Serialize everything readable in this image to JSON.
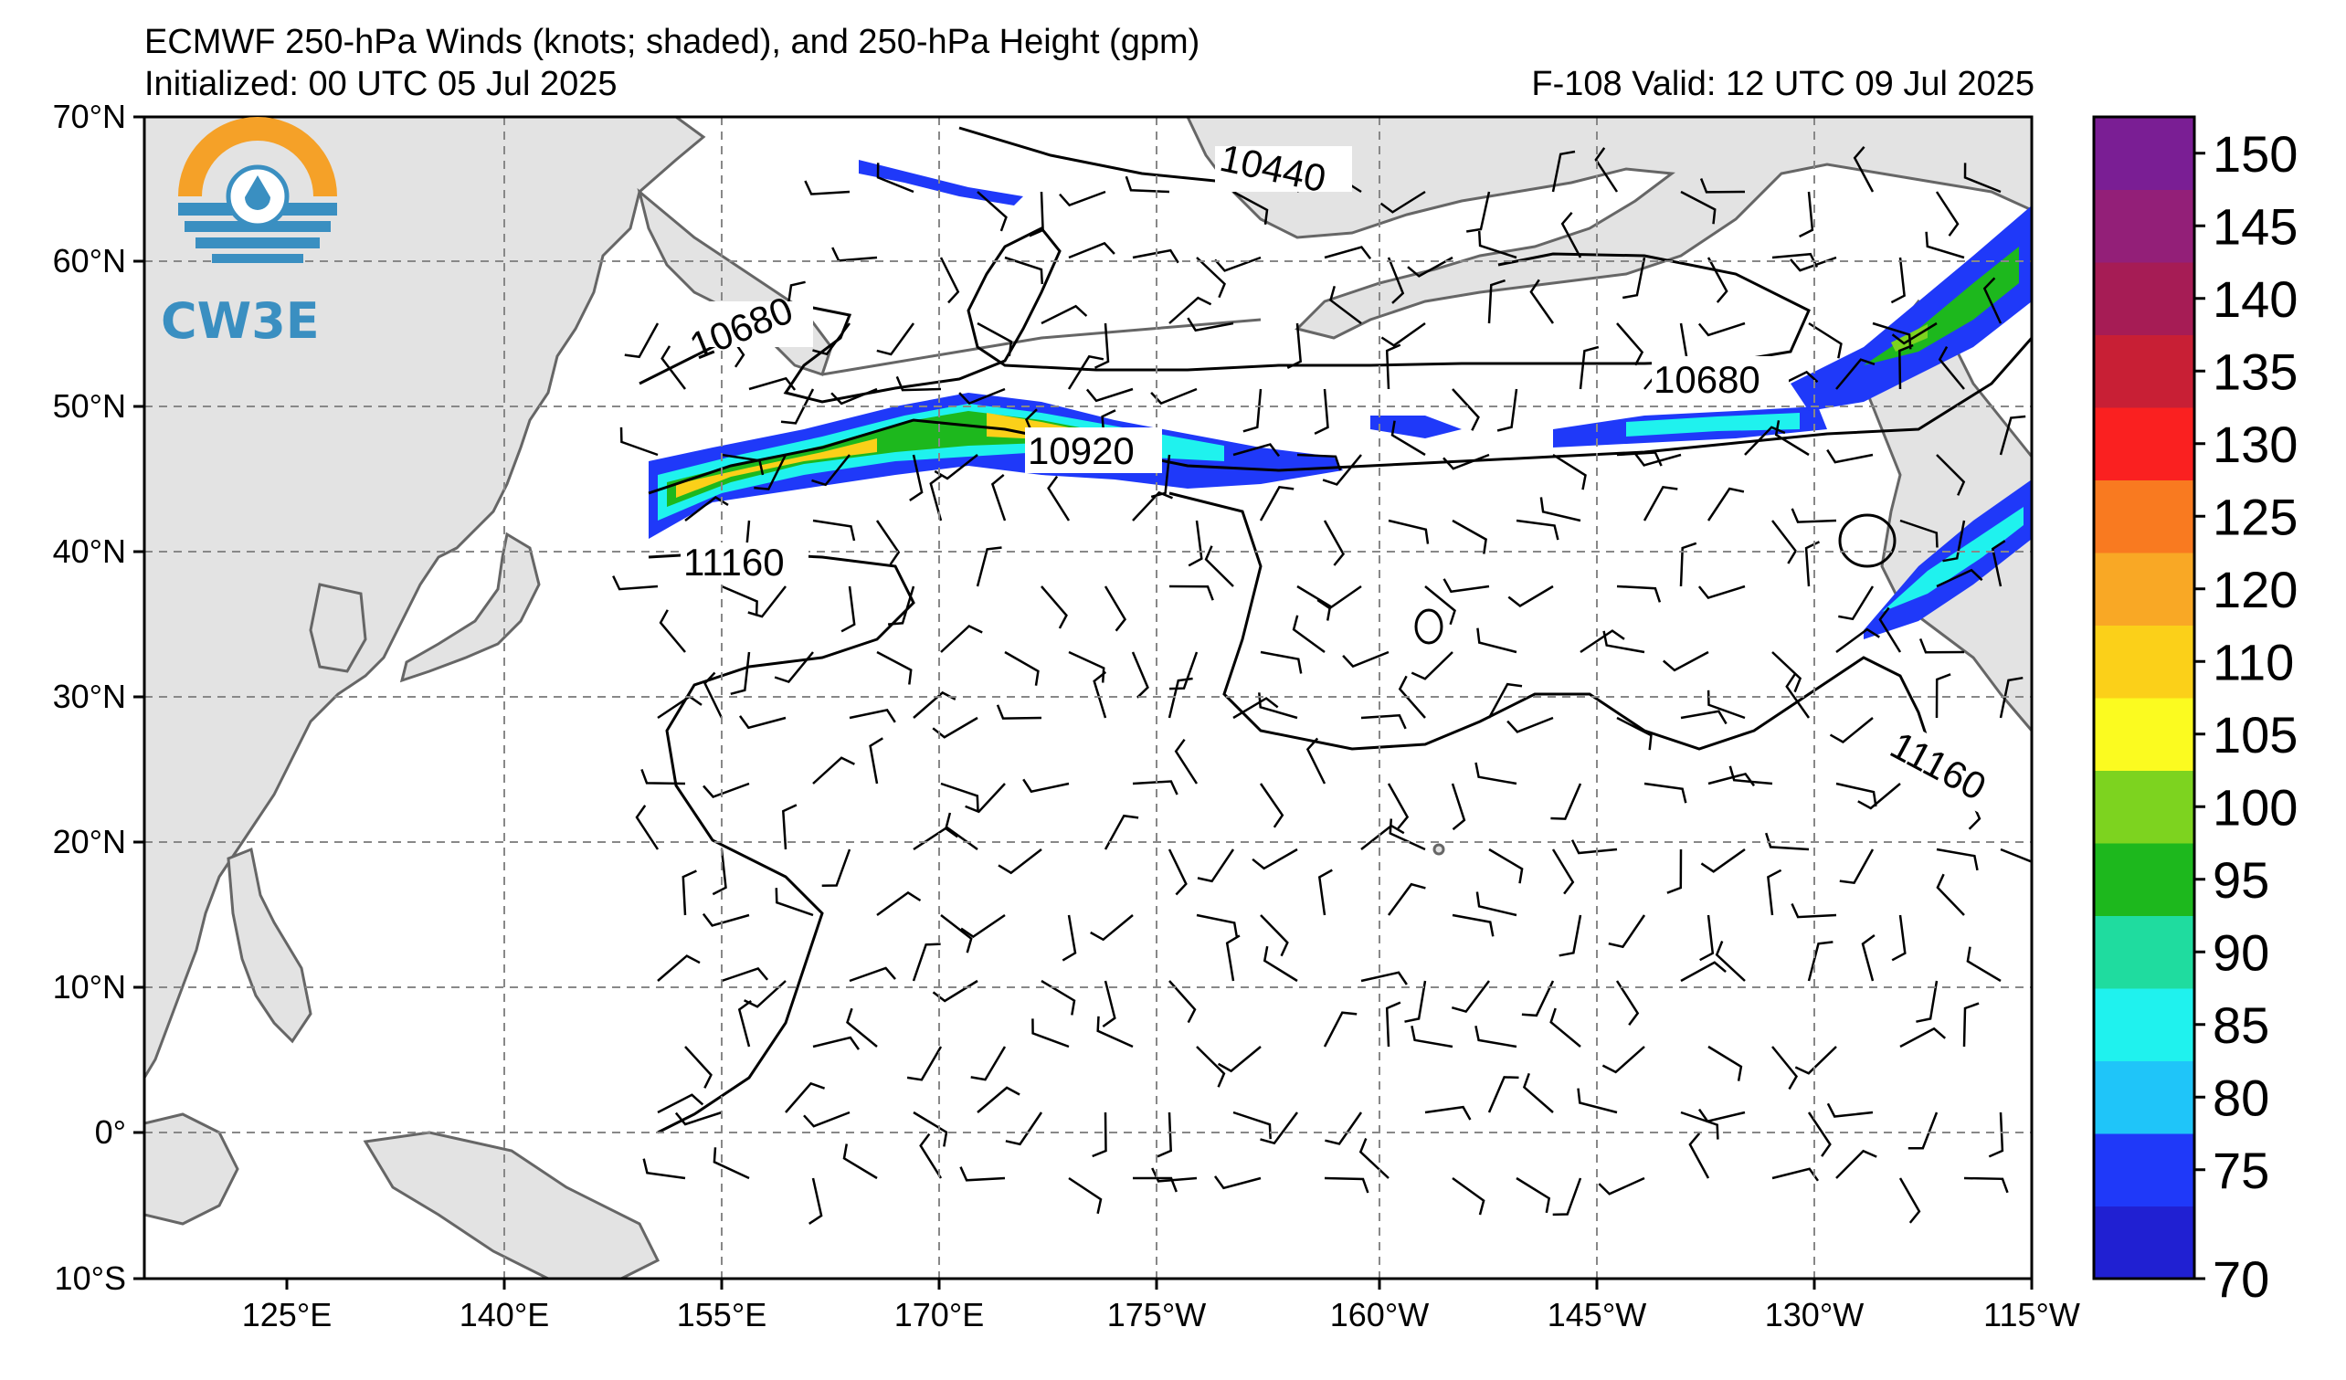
{
  "header": {
    "title": "ECMWF 250-hPa Winds (knots; shaded), and 250-hPa Height (gpm)",
    "initialized": "Initialized: 00 UTC 05 Jul 2025",
    "valid": "F-108  Valid: 12 UTC 09 Jul 2025"
  },
  "logo": {
    "text": "CW3E",
    "colors": {
      "orange": "#f5a128",
      "blue": "#3a8fc1"
    }
  },
  "axes": {
    "lat_labels": [
      "70°N",
      "60°N",
      "50°N",
      "40°N",
      "30°N",
      "20°N",
      "10°N",
      "0°",
      "10°S"
    ],
    "lon_labels": [
      "125°E",
      "140°E",
      "155°E",
      "170°E",
      "175°W",
      "160°W",
      "145°W",
      "130°W",
      "115°W"
    ]
  },
  "colorbar": {
    "labels": [
      "150",
      "145",
      "140",
      "135",
      "130",
      "125",
      "120",
      "110",
      "105",
      "100",
      "95",
      "90",
      "85",
      "80",
      "75",
      "70"
    ],
    "colors": [
      "#7a1e94",
      "#931f78",
      "#a61c55",
      "#c81f35",
      "#fa2020",
      "#f97a20",
      "#f9a825",
      "#fbd019",
      "#fbfb20",
      "#7dd31f",
      "#1db81d",
      "#1fdc9f",
      "#1ff2ee",
      "#1fc5f9",
      "#1f39f9",
      "#2020d2"
    ]
  },
  "contour_labels": [
    "10440",
    "10680",
    "10680",
    "10920",
    "11160",
    "11160"
  ]
}
